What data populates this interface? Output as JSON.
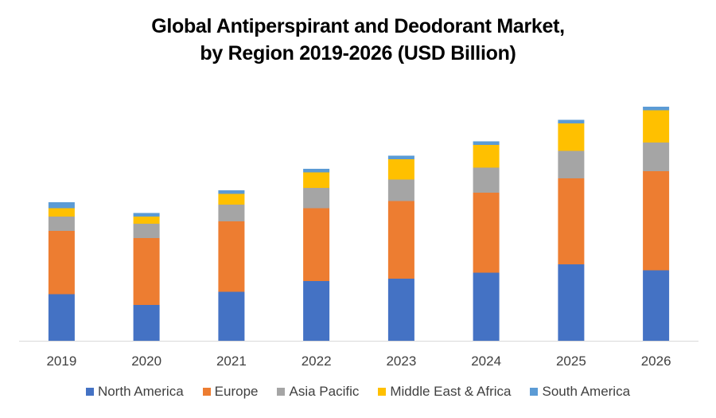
{
  "chart_data": {
    "type": "bar",
    "stacked": true,
    "title": "Global Antiperspirant and Deodorant Market, by Region 2019-2026 (USD Billion)",
    "title_lines": [
      "Global Antiperspirant and Deodorant Market,",
      "by Region 2019-2026 (USD Billion)"
    ],
    "xlabel": "",
    "ylabel": "USD Billion",
    "y_axis_visible": false,
    "ylim": [
      0,
      20
    ],
    "grid": false,
    "legend_position": "bottom",
    "categories": [
      "2019",
      "2020",
      "2021",
      "2022",
      "2023",
      "2024",
      "2025",
      "2026"
    ],
    "series": [
      {
        "name": "North America",
        "color": "#4472C4",
        "values": [
          3.9,
          3.0,
          4.1,
          5.0,
          5.2,
          5.7,
          6.4,
          5.9
        ]
      },
      {
        "name": "Europe",
        "color": "#ED7D31",
        "values": [
          5.3,
          5.6,
          5.9,
          6.1,
          6.5,
          6.7,
          7.2,
          8.3
        ]
      },
      {
        "name": "Asia Pacific",
        "color": "#A5A5A5",
        "values": [
          1.2,
          1.2,
          1.4,
          1.7,
          1.8,
          2.1,
          2.3,
          2.4
        ]
      },
      {
        "name": "Middle East & Africa",
        "color": "#FFC000",
        "values": [
          0.7,
          0.6,
          0.9,
          1.3,
          1.7,
          1.9,
          2.3,
          2.7
        ]
      },
      {
        "name": "South America",
        "color": "#5B9BD5",
        "values": [
          0.5,
          0.3,
          0.3,
          0.3,
          0.3,
          0.3,
          0.3,
          0.3
        ]
      }
    ]
  }
}
